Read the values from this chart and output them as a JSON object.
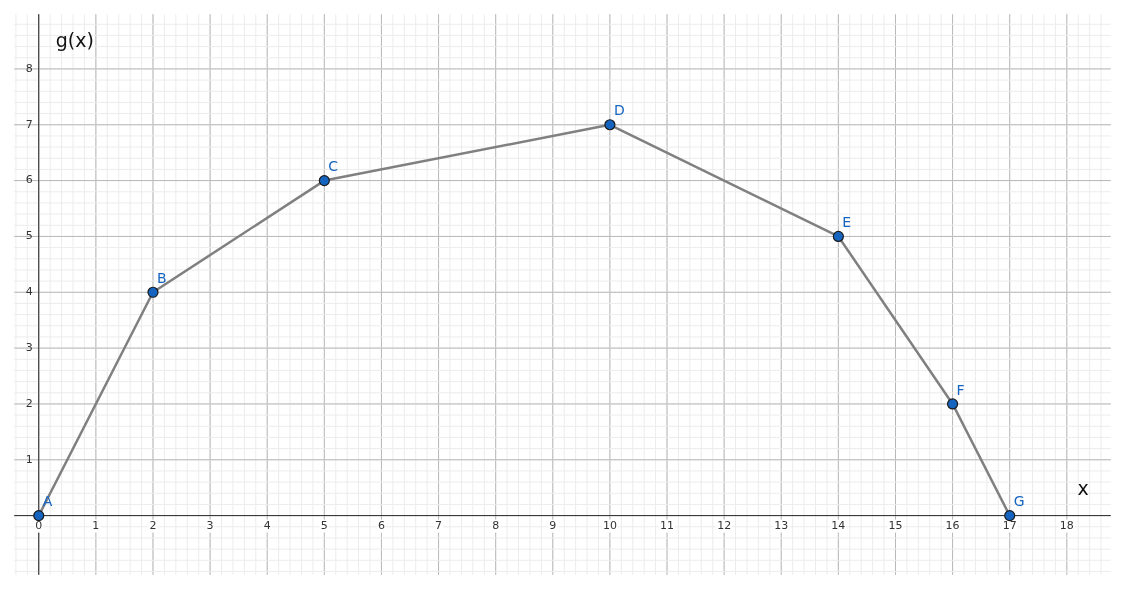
{
  "chart_data": {
    "type": "line",
    "xlabel": "x",
    "ylabel": "g(x)",
    "x": [
      0,
      2,
      5,
      10,
      14,
      16,
      17
    ],
    "series": [
      {
        "color": "#808080",
        "values": [
          0,
          4,
          6,
          7,
          5,
          2,
          0
        ]
      }
    ],
    "marker": "circle",
    "line_style": "solid",
    "grid": true,
    "legend": false,
    "xlim": [
      -0.43,
      18.77
    ],
    "ylim": [
      -1.06,
      8.98
    ],
    "xticks": [
      0,
      1,
      2,
      3,
      4,
      5,
      6,
      7,
      8,
      9,
      10,
      11,
      12,
      13,
      14,
      15,
      16,
      17,
      18
    ],
    "yticks": [
      1,
      2,
      3,
      4,
      5,
      6,
      7,
      8
    ],
    "annotations": [
      {
        "text": "A",
        "x": 0,
        "y": 0
      },
      {
        "text": "B",
        "x": 2,
        "y": 4
      },
      {
        "text": "C",
        "x": 5,
        "y": 6
      },
      {
        "text": "D",
        "x": 10,
        "y": 7
      },
      {
        "text": "E",
        "x": 14,
        "y": 5
      },
      {
        "text": "F",
        "x": 16,
        "y": 2
      },
      {
        "text": "G",
        "x": 17,
        "y": 0
      }
    ]
  }
}
